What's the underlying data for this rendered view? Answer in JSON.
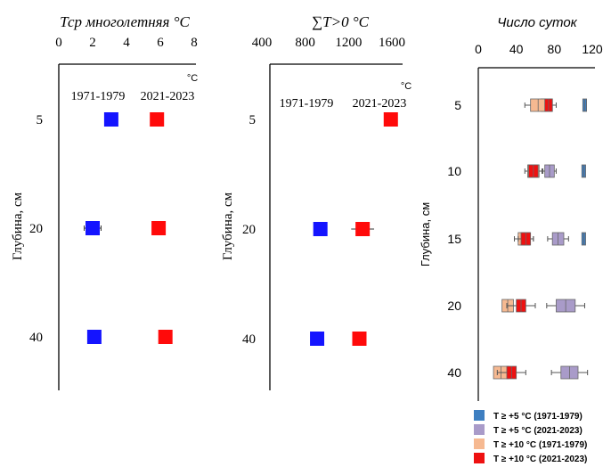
{
  "colors": {
    "blue": "#1414ff",
    "red": "#ff0a0a",
    "legend_blue": "#3e7fc1",
    "legend_lilac": "#a99bc9",
    "legend_peach": "#f6b991",
    "legend_red": "#ee1111",
    "axis": "#000000"
  },
  "chart_data": [
    {
      "type": "scatter",
      "title": "Тср многолетняя °C",
      "unit": "°C",
      "ylabel": "Глубина, см",
      "xlim": [
        0,
        8
      ],
      "x_ticks": [
        "0",
        "2",
        "4",
        "6",
        "8"
      ],
      "categories": [
        "5",
        "20",
        "40"
      ],
      "series": [
        {
          "name": "1971-1979",
          "color": "#1414ff",
          "values": [
            3.1,
            2.0,
            2.1
          ],
          "err": [
            0,
            0.5,
            0.3
          ]
        },
        {
          "name": "2021-2023",
          "color": "#ff0a0a",
          "values": [
            5.8,
            5.9,
            6.3
          ],
          "err": [
            0,
            0,
            0
          ]
        }
      ]
    },
    {
      "type": "scatter",
      "title": "∑T>0 °C",
      "unit": "°C",
      "ylabel": "Глубина, см",
      "xlim": [
        400,
        1600
      ],
      "x_ticks": [
        "400",
        "800",
        "1200",
        "1600"
      ],
      "categories": [
        "5",
        "20",
        "40"
      ],
      "series": [
        {
          "name": "1971-1979",
          "color": "#1414ff",
          "values": [
            null,
            940,
            910
          ],
          "err": [
            0,
            0,
            0
          ]
        },
        {
          "name": "2021-2023",
          "color": "#ff0a0a",
          "values": [
            1590,
            1330,
            1300
          ],
          "err": [
            0,
            40,
            0
          ]
        }
      ]
    },
    {
      "type": "box",
      "title": "Число суток",
      "ylabel": "Глубина, см",
      "xlim": [
        0,
        120
      ],
      "x_ticks": [
        "0",
        "40",
        "80",
        "120"
      ],
      "categories": [
        "5",
        "10",
        "15",
        "20",
        "40"
      ],
      "legend": [
        "T ≥ +5 °C (1971-1979)",
        "T ≥ +5 °C (2021-2023)",
        "T ≥ +10 °C (1971-1979)",
        "T ≥ +10 °C (2021-2023)"
      ],
      "series": [
        {
          "name": "T ≥ +5 °C (1971-1979)",
          "color": "#3e7fc1",
          "boxes": [
            [
              110,
              114,
              0
            ],
            [
              109,
              113,
              0
            ],
            [
              109,
              113,
              0
            ],
            null,
            null
          ]
        },
        {
          "name": "T ≥ +5 °C (2021-2023)",
          "color": "#a99bc9",
          "boxes": [
            [
              66,
              78,
              4
            ],
            [
              70,
              80,
              2
            ],
            [
              78,
              90,
              5
            ],
            [
              82,
              102,
              10
            ],
            [
              87,
              105,
              10
            ]
          ]
        },
        {
          "name": "T ≥ +10 °C (1971-1979)",
          "color": "#f6b991",
          "boxes": [
            [
              55,
              71,
              6
            ],
            [
              52,
              64,
              3
            ],
            [
              42,
              54,
              4
            ],
            [
              25,
              37,
              0
            ],
            [
              16,
              32,
              0
            ]
          ]
        },
        {
          "name": "T ≥ +10 °C (2021-2023)",
          "color": "#ee1111",
          "boxes": [
            [
              70,
              78,
              0
            ],
            [
              53,
              63,
              0
            ],
            [
              45,
              55,
              3
            ],
            [
              40,
              50,
              10
            ],
            [
              30,
              40,
              10
            ]
          ]
        }
      ]
    }
  ],
  "panel1_header_1": "1971-1979",
  "panel1_header_2": "2021-2023",
  "panel2_header_1": "1971-1979",
  "panel2_header_2": "2021-2023"
}
